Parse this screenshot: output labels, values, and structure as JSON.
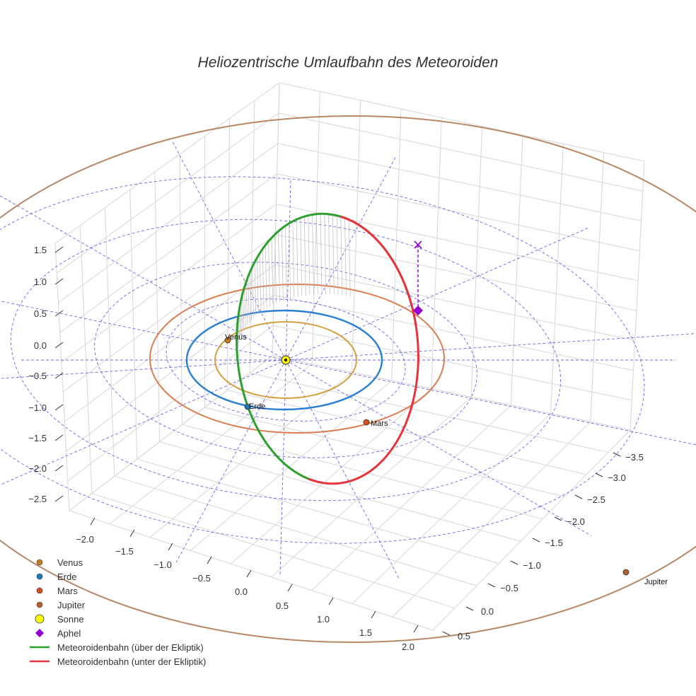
{
  "chart_data": {
    "type": "3d-orbit",
    "title": "Heliozentrische Umlaufbahn des Meteoroiden",
    "axes": {
      "x_ticks": [
        "−2.0",
        "−1.5",
        "−1.0",
        "−0.5",
        "0.0",
        "0.5",
        "1.0",
        "1.5",
        "2.0"
      ],
      "y_ticks": [
        "−3.5",
        "−3.0",
        "−2.5",
        "−2.0",
        "−1.5",
        "−1.0",
        "−0.5",
        "0.0",
        "0.5"
      ],
      "z_ticks": [
        "1.5",
        "1.0",
        "0.5",
        "0.0",
        "−0.5",
        "−1.0",
        "−1.5",
        "−2.0",
        "−2.5"
      ]
    },
    "planets": [
      {
        "name": "Venus",
        "radius_au": 0.72,
        "color": "#d4a040",
        "marker_color": "#c87f17"
      },
      {
        "name": "Erde",
        "radius_au": 1.0,
        "color": "#2a7fd4",
        "marker_color": "#1f77b4"
      },
      {
        "name": "Mars",
        "radius_au": 1.52,
        "color": "#dc7d50",
        "marker_color": "#d2501e"
      },
      {
        "name": "Jupiter",
        "radius_au": 5.2,
        "color": "#b88866",
        "marker_color": "#b06030"
      }
    ],
    "sun": {
      "name": "Sonne",
      "color": "#ffff00"
    },
    "aphel": {
      "name": "Aphel",
      "color": "#9400d3"
    },
    "meteoroid": {
      "above_label": "Meteoroidenbahn (über der Ekliptik)",
      "below_label": "Meteoroidenbahn (unter der Ekliptik)",
      "above_color": "#2ca02c",
      "below_color": "#e8333a"
    }
  },
  "legend": [
    {
      "label": "Venus",
      "kind": "dot",
      "color": "#c87f17"
    },
    {
      "label": "Erde",
      "kind": "dot",
      "color": "#1f77b4"
    },
    {
      "label": "Mars",
      "kind": "dot",
      "color": "#d2501e"
    },
    {
      "label": "Jupiter",
      "kind": "dot",
      "color": "#b06030"
    },
    {
      "label": "Sonne",
      "kind": "sun",
      "color": "#ffff00"
    },
    {
      "label": "Aphel",
      "kind": "diamond",
      "color": "#9400d3"
    },
    {
      "label": "Meteoroidenbahn (über der Ekliptik)",
      "kind": "line",
      "color": "#2ca02c"
    },
    {
      "label": "Meteoroidenbahn (unter der Ekliptik)",
      "kind": "line",
      "color": "#e8333a"
    }
  ]
}
